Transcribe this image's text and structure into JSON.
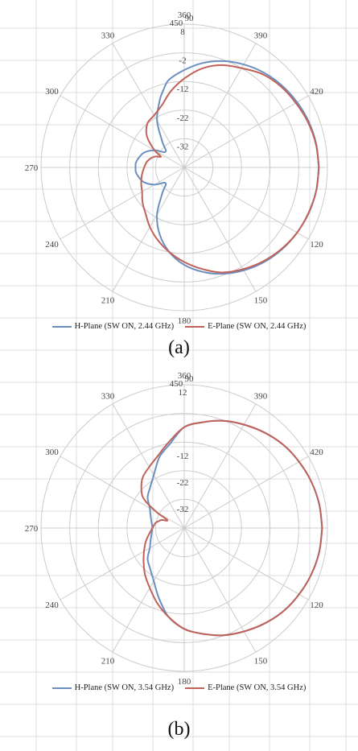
{
  "colors": {
    "h_plane": "#6b8fbf",
    "e_plane": "#c0625a",
    "grid": "#cccccc",
    "guide": "#dddddd"
  },
  "panels": [
    {
      "label": "(a)",
      "legend": [
        "H-Plane (SW ON, 2.44 GHz)",
        "E-Plane (SW ON, 2.44 GHz)"
      ]
    },
    {
      "label": "(b)",
      "legend": [
        "H-Plane (SW ON, 3.54 GHz)",
        "E-Plane (SW ON, 3.54 GHz)"
      ]
    }
  ],
  "chart_data": [
    {
      "type": "line",
      "subtype": "polar",
      "angle_ticks": [
        "90",
        "120",
        "150",
        "180",
        "210",
        "240",
        "270",
        "300",
        "330",
        "360",
        "390",
        "420",
        "450"
      ],
      "radial_ticks": [
        8,
        -2,
        -12,
        -22,
        -32
      ],
      "rlim": [
        -42,
        8
      ],
      "grid": true,
      "legend_position": "bottom",
      "series": [
        {
          "name": "H-Plane (SW ON, 2.44 GHz)",
          "theta": [
            90,
            100,
            110,
            120,
            130,
            140,
            150,
            160,
            170,
            180,
            190,
            200,
            210,
            220,
            230,
            240,
            250,
            260,
            265,
            270,
            275,
            280,
            290,
            300,
            310,
            320,
            330,
            340,
            345,
            350,
            360,
            370,
            380,
            390,
            400,
            410,
            420,
            430,
            440,
            450
          ],
          "r": [
            5,
            4.8,
            4.3,
            3.5,
            2.5,
            1.2,
            -0.5,
            -2.5,
            -5,
            -8,
            -12,
            -17,
            -23,
            -30,
            -33.5,
            -30,
            -27,
            -25.5,
            -25,
            -25,
            -25,
            -25.5,
            -27,
            -30,
            -33.5,
            -30,
            -23,
            -17,
            -14,
            -11,
            -8,
            -5,
            -2.5,
            -0.5,
            1.2,
            2.5,
            3.5,
            4.3,
            4.8,
            5
          ]
        },
        {
          "name": "E-Plane (SW ON, 2.44 GHz)",
          "theta": [
            90,
            100,
            110,
            120,
            130,
            140,
            150,
            160,
            170,
            180,
            190,
            200,
            210,
            220,
            230,
            240,
            250,
            260,
            270,
            280,
            290,
            295,
            300,
            310,
            320,
            330,
            340,
            350,
            360,
            370,
            380,
            390,
            400,
            410,
            420,
            430,
            440,
            450
          ],
          "r": [
            5,
            4.8,
            4.2,
            3.5,
            2.3,
            0.8,
            -1,
            -3,
            -6,
            -9,
            -12,
            -15,
            -18,
            -21,
            -23,
            -25,
            -26,
            -27,
            -28,
            -29,
            -31,
            -33,
            -30,
            -25,
            -22,
            -21,
            -19,
            -15,
            -11,
            -7,
            -4,
            -2,
            0.5,
            2,
            3,
            4,
            4.7,
            5
          ]
        }
      ]
    },
    {
      "type": "line",
      "subtype": "polar",
      "angle_ticks": [
        "90",
        "120",
        "150",
        "180",
        "210",
        "240",
        "270",
        "300",
        "330",
        "360",
        "390",
        "420",
        "450"
      ],
      "radial_ticks": [
        12,
        -12,
        -22,
        -32
      ],
      "rlim": [
        -42,
        12
      ],
      "grid": true,
      "legend_position": "bottom",
      "series": [
        {
          "name": "H-Plane (SW ON, 3.54 GHz)",
          "theta": [
            90,
            100,
            110,
            120,
            130,
            140,
            150,
            160,
            170,
            180,
            190,
            200,
            210,
            220,
            230,
            240,
            250,
            260,
            270,
            280,
            290,
            300,
            310,
            320,
            330,
            340,
            345,
            350,
            360,
            370,
            380,
            390,
            400,
            410,
            420,
            430,
            440,
            450
          ],
          "r": [
            10,
            9.7,
            9,
            8,
            6.8,
            5,
            3,
            1,
            -1.5,
            -4,
            -8,
            -14,
            -19,
            -22,
            -24,
            -27,
            -28.5,
            -29.5,
            -30,
            -29.5,
            -28.5,
            -27,
            -24,
            -22,
            -19,
            -14,
            -12,
            -10,
            -4,
            -1.5,
            1,
            3,
            5,
            6.8,
            8,
            9,
            9.7,
            10
          ]
        },
        {
          "name": "E-Plane (SW ON, 3.54 GHz)",
          "theta": [
            90,
            100,
            110,
            120,
            130,
            140,
            150,
            160,
            170,
            180,
            190,
            200,
            210,
            220,
            230,
            240,
            250,
            260,
            270,
            280,
            285,
            290,
            295,
            300,
            305,
            310,
            320,
            330,
            340,
            350,
            360,
            370,
            380,
            390,
            400,
            410,
            420,
            430,
            440,
            450
          ],
          "r": [
            10,
            9.7,
            9,
            8,
            6.8,
            5,
            3,
            1,
            -1.5,
            -4,
            -8,
            -12,
            -16,
            -19,
            -22,
            -24.5,
            -26.5,
            -28.5,
            -30,
            -31,
            -32,
            -33,
            -35,
            -30,
            -24,
            -21,
            -17.5,
            -15.5,
            -13,
            -9,
            -4,
            -1.5,
            1,
            3,
            5,
            6.8,
            8,
            9,
            9.7,
            10
          ]
        }
      ]
    }
  ]
}
